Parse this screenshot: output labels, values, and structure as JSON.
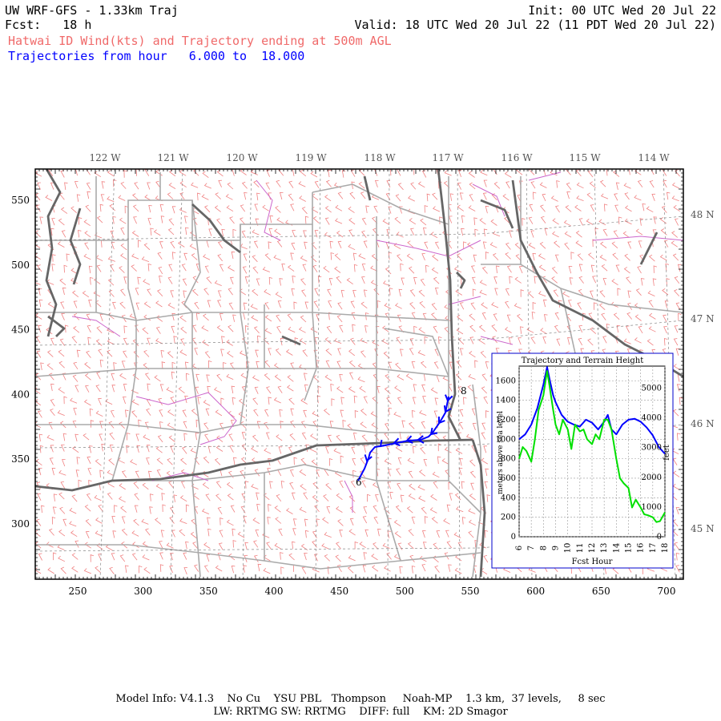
{
  "header": {
    "title": "UW WRF-GFS - 1.33km Traj",
    "init": "Init: 00 UTC Wed 20 Jul 22",
    "fcst": "Fcst:   18 h",
    "valid": "Valid: 18 UTC Wed 20 Jul 22 (11 PDT Wed 20 Jul 22)",
    "subtitle": "Hatwai ID Wind(kts) and Trajectory ending at 500m AGL",
    "traj_range": "Trajectories from hour   6.000 to  18.000"
  },
  "map": {
    "lon_labels": [
      "122 W",
      "121 W",
      "120 W",
      "119 W",
      "118 W",
      "117 W",
      "116 W",
      "115 W",
      "114 W"
    ],
    "lat_labels": [
      "48 N",
      "47 N",
      "46 N",
      "45 N"
    ],
    "x_ticks": [
      "250",
      "300",
      "350",
      "400",
      "450",
      "500",
      "550",
      "600",
      "650",
      "700"
    ],
    "y_ticks": [
      "550",
      "500",
      "450",
      "400",
      "350",
      "300"
    ],
    "trajectory_start_label": "6",
    "trajectory_end_label": "8",
    "colors": {
      "wind_barbs": "#f08080",
      "state_border": "#666666",
      "county": "#aaaaaa",
      "water": "#cc66cc",
      "trajectory": "#0000ff",
      "grid": "#888888"
    }
  },
  "inset": {
    "title": "Trajectory and Terrain Height",
    "xlabel": "Fcst Hour",
    "ylabel_left": "meters above sea level",
    "ylabel_right": "feet",
    "x_ticks": [
      "6",
      "7",
      "8",
      "9",
      "10",
      "11",
      "12",
      "13",
      "14",
      "15",
      "16",
      "17",
      "18"
    ],
    "y_ticks_left": [
      "0",
      "200",
      "400",
      "600",
      "800",
      "1000",
      "1200",
      "1400",
      "1600"
    ],
    "y_ticks_right": [
      "0",
      "1000",
      "2000",
      "3000",
      "4000",
      "5000"
    ]
  },
  "chart_data": {
    "type": "line",
    "title": "Trajectory and Terrain Height",
    "xlabel": "Fcst Hour",
    "ylabel": "meters above sea level",
    "xlim": [
      6,
      18
    ],
    "ylim": [
      0,
      1750
    ],
    "grid": true,
    "series": [
      {
        "name": "",
        "color": "#0000ff",
        "x": [
          6,
          6.5,
          7,
          7.5,
          8,
          8.3,
          8.5,
          8.8,
          9,
          9.5,
          10,
          10.5,
          11,
          11.5,
          12,
          12.5,
          13,
          13.3,
          13.6,
          14,
          14.5,
          15,
          15.5,
          16,
          16.5,
          17,
          17.5,
          18
        ],
        "y": [
          1000,
          1050,
          1150,
          1320,
          1560,
          1740,
          1620,
          1450,
          1380,
          1250,
          1180,
          1150,
          1130,
          1200,
          1170,
          1100,
          1180,
          1250,
          1100,
          1050,
          1150,
          1200,
          1210,
          1180,
          1120,
          1040,
          920,
          850
        ]
      },
      {
        "name": "",
        "color": "#00e000",
        "x": [
          6,
          6.3,
          6.6,
          7,
          7.3,
          7.6,
          8,
          8.3,
          8.5,
          8.8,
          9,
          9.3,
          9.6,
          10,
          10.3,
          10.6,
          11,
          11.3,
          11.6,
          12,
          12.3,
          12.6,
          13,
          13.3,
          13.6,
          14,
          14.3,
          14.6,
          15,
          15.3,
          15.6,
          16,
          16.3,
          16.6,
          17,
          17.3,
          17.6,
          18
        ],
        "y": [
          800,
          920,
          880,
          770,
          1000,
          1300,
          1450,
          1700,
          1550,
          1300,
          1150,
          1050,
          1200,
          1100,
          900,
          1150,
          1080,
          1100,
          1000,
          950,
          1050,
          1000,
          1200,
          1200,
          1100,
          800,
          600,
          550,
          500,
          300,
          380,
          300,
          230,
          220,
          200,
          150,
          160,
          250
        ]
      }
    ]
  },
  "footer": {
    "line1": "Model Info: V4.1.3    No Cu    YSU PBL   Thompson     Noah-MP    1.3 km,  37 levels,     8 sec",
    "line2": "LW: RRTMG SW: RRTMG    DIFF: full    KM: 2D Smagor"
  }
}
